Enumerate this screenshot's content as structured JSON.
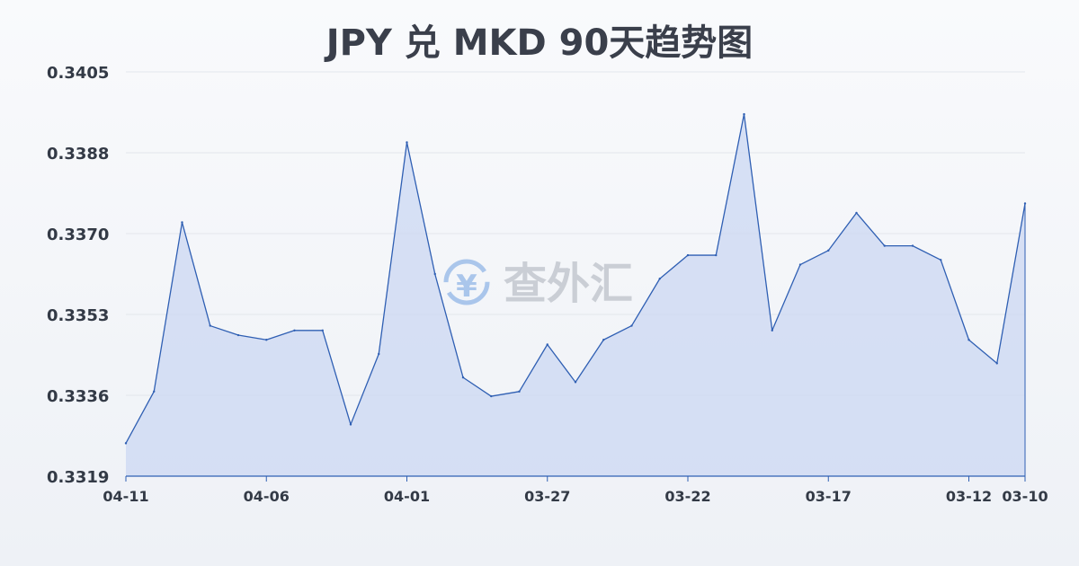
{
  "chart_data": {
    "type": "area",
    "title": "JPY 兑 MKD 90天趋势图",
    "xlabel": "",
    "ylabel": "",
    "ylim": [
      0.3319,
      0.3405
    ],
    "yticks": [
      "0.3405",
      "0.3388",
      "0.3370",
      "0.3353",
      "0.3336",
      "0.3319"
    ],
    "xticks": [
      {
        "index": 0,
        "label": "04-11"
      },
      {
        "index": 5,
        "label": "04-06"
      },
      {
        "index": 10,
        "label": "04-01"
      },
      {
        "index": 15,
        "label": "03-27"
      },
      {
        "index": 20,
        "label": "03-22"
      },
      {
        "index": 25,
        "label": "03-17"
      },
      {
        "index": 30,
        "label": "03-12"
      },
      {
        "index": 32,
        "label": "03-10"
      }
    ],
    "x": [
      "04-11",
      "04-10",
      "04-09",
      "04-08",
      "04-07",
      "04-06",
      "04-05",
      "04-04",
      "04-03",
      "04-02",
      "04-01",
      "03-31",
      "03-30",
      "03-29",
      "03-28",
      "03-27",
      "03-26",
      "03-25",
      "03-24",
      "03-23",
      "03-22",
      "03-21",
      "03-20",
      "03-19",
      "03-18",
      "03-17",
      "03-16",
      "03-15",
      "03-14",
      "03-13",
      "03-12",
      "03-11",
      "03-10"
    ],
    "values": [
      0.3326,
      0.3337,
      0.3373,
      0.3351,
      0.3349,
      0.3348,
      0.335,
      0.335,
      0.333,
      0.3345,
      0.339,
      0.3362,
      0.334,
      0.3336,
      0.3337,
      0.3347,
      0.3339,
      0.3348,
      0.3351,
      0.3361,
      0.3366,
      0.3366,
      0.3396,
      0.335,
      0.3364,
      0.3367,
      0.3375,
      0.3368,
      0.3368,
      0.3365,
      0.3348,
      0.3343,
      0.3377
    ],
    "grid": true,
    "legend": "none",
    "colors": {
      "line": "#2f5fb3",
      "fill": "#c9d6f2",
      "grid": "#e3e6ec",
      "axis": "#2f5fb3"
    }
  },
  "watermark": {
    "text": "查外汇",
    "icon": "yen-exchange-icon",
    "symbol": "¥"
  }
}
